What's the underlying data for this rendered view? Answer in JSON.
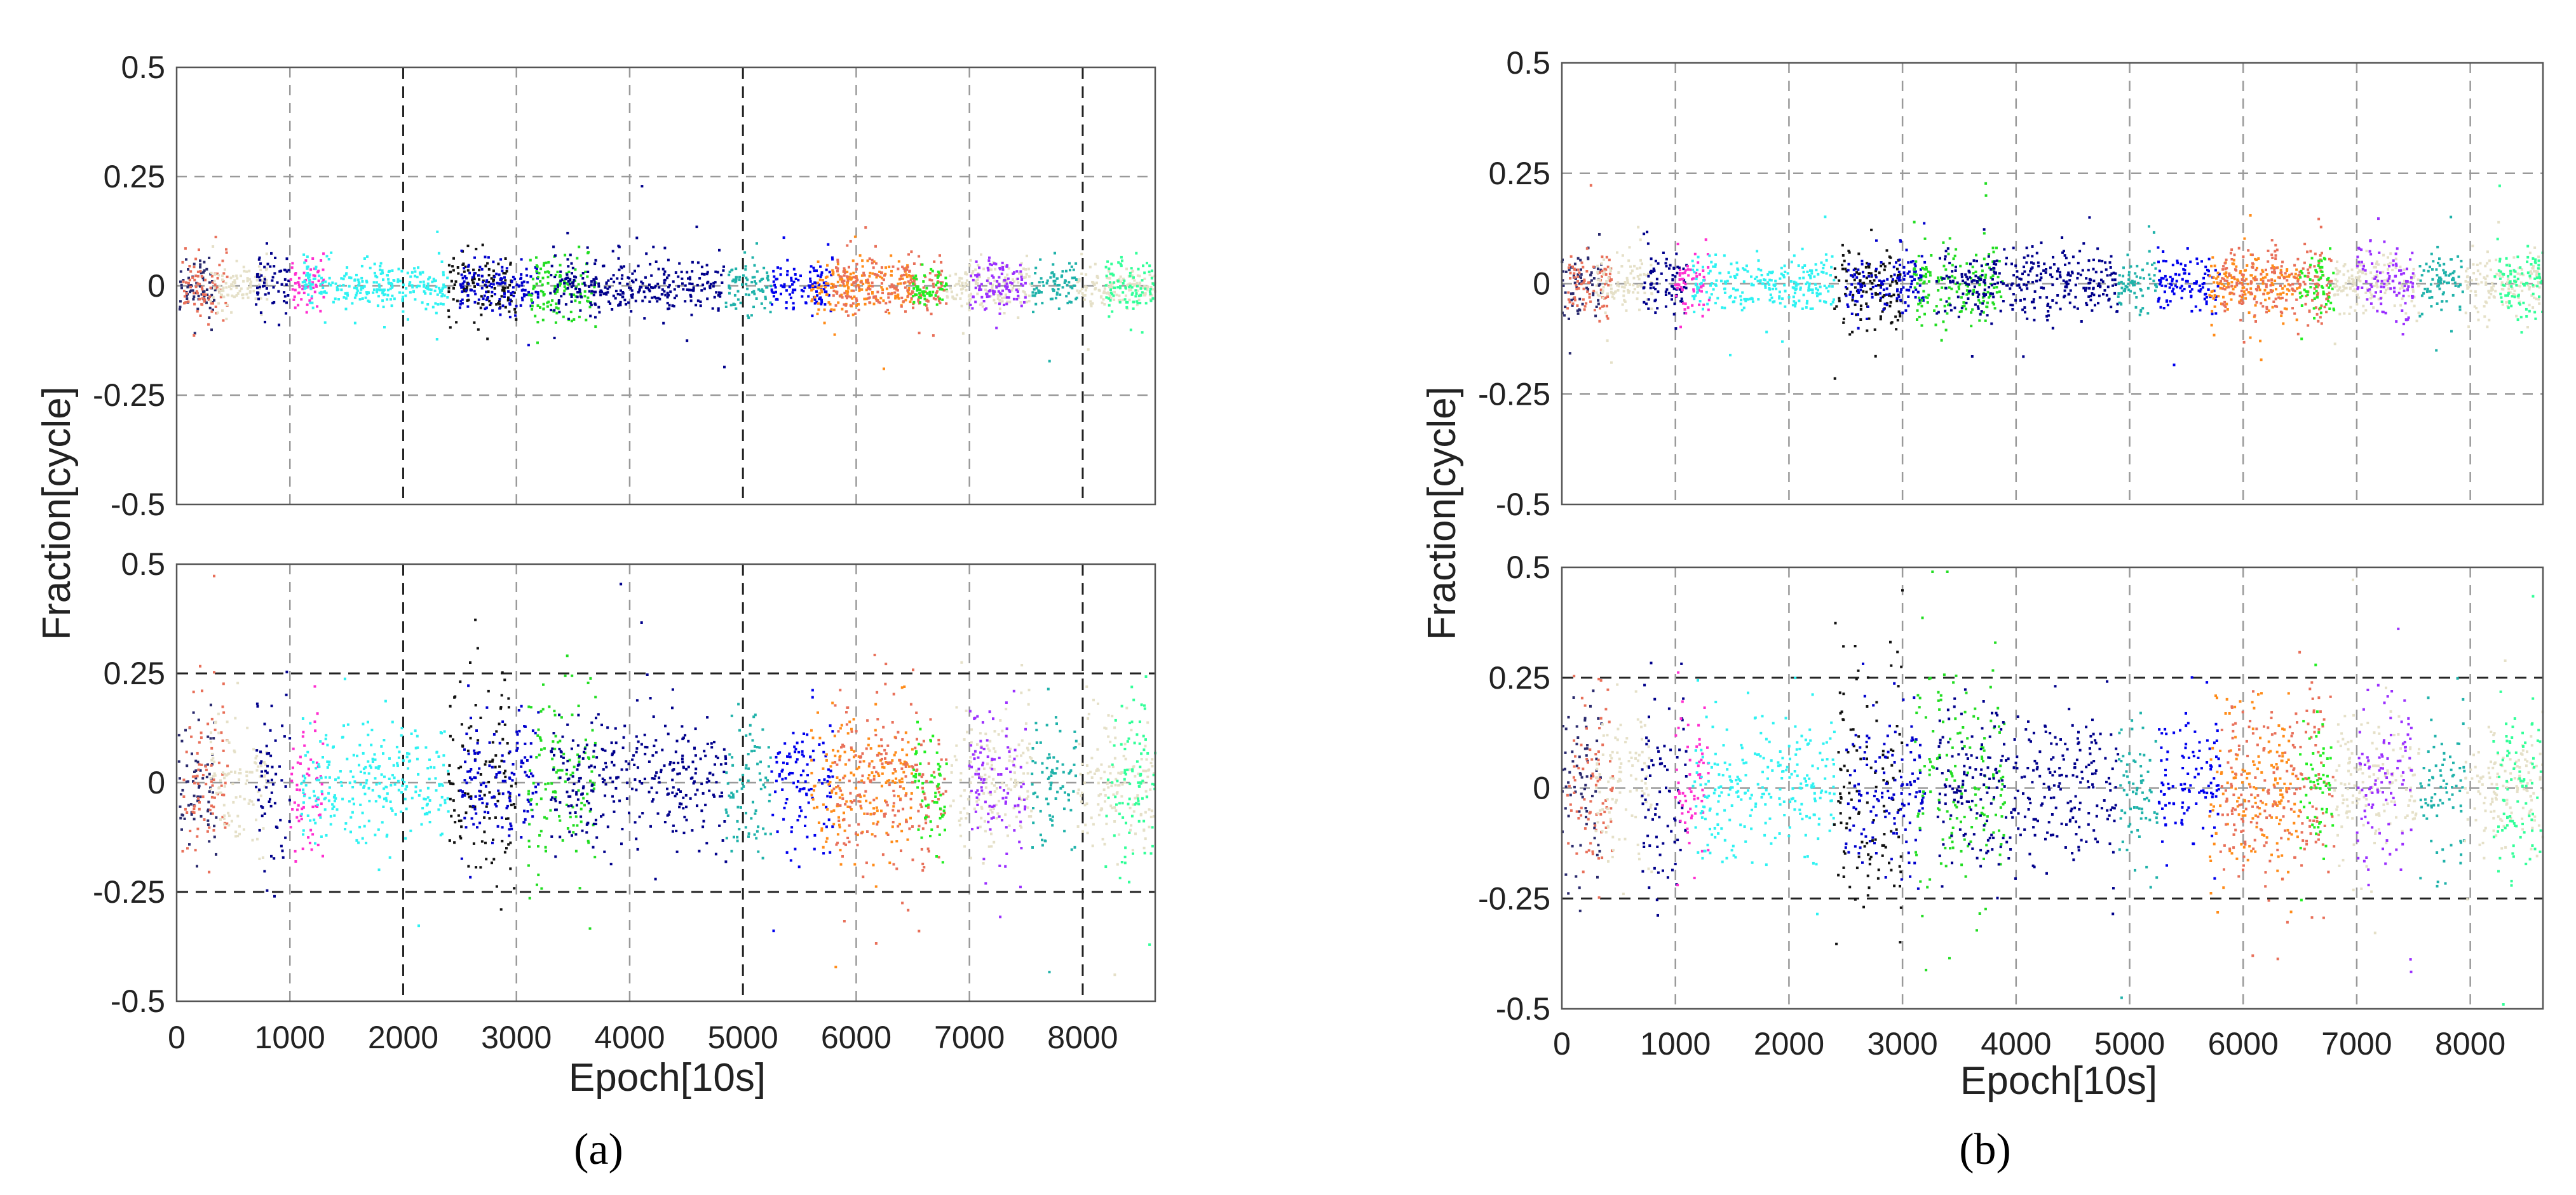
{
  "chart_data": [
    {
      "type": "scatter",
      "panel_label": "(a)",
      "xlabel": "Epoch[10s]",
      "ylabel": "Fraction[cycle]",
      "xlim": [
        0,
        8640
      ],
      "x_ticks": [
        0,
        1000,
        2000,
        3000,
        4000,
        5000,
        6000,
        7000,
        8000
      ],
      "grid": true,
      "subplots": [
        {
          "position": "top",
          "ylim": [
            -0.5,
            0.5
          ],
          "y_ticks": [
            -0.5,
            -0.25,
            0,
            0.25,
            0.5
          ],
          "y_tick_labels": [
            "-0.5",
            "-0.25",
            "0",
            "0.25",
            "0.5"
          ],
          "dark_vertical_lines": [
            2000,
            5000,
            8000
          ],
          "dark_horizontal_lines": [],
          "segments": [
            {
              "x_start": 0,
              "x_end": 350,
              "color": "#2a2a6e",
              "spread": 0.03
            },
            {
              "x_start": 50,
              "x_end": 450,
              "color": "#e8705a",
              "spread": 0.035
            },
            {
              "x_start": 300,
              "x_end": 800,
              "color": "#e5e0c8",
              "spread": 0.025
            },
            {
              "x_start": 700,
              "x_end": 1000,
              "color": "#00008b",
              "spread": 0.035
            },
            {
              "x_start": 1000,
              "x_end": 1300,
              "color": "#ff2fd0",
              "spread": 0.03
            },
            {
              "x_start": 1100,
              "x_end": 2400,
              "color": "#2ef2f2",
              "spread": 0.025
            },
            {
              "x_start": 2400,
              "x_end": 3000,
              "color": "#111111",
              "spread": 0.045
            },
            {
              "x_start": 2500,
              "x_end": 3200,
              "color": "#0000cd",
              "spread": 0.03
            },
            {
              "x_start": 3100,
              "x_end": 3700,
              "color": "#22dd22",
              "spread": 0.04
            },
            {
              "x_start": 3300,
              "x_end": 4850,
              "color": "#00008b",
              "spread": 0.03
            },
            {
              "x_start": 4850,
              "x_end": 5250,
              "color": "#20b2aa",
              "spread": 0.03
            },
            {
              "x_start": 5250,
              "x_end": 5800,
              "color": "#0000ee",
              "spread": 0.025
            },
            {
              "x_start": 5600,
              "x_end": 6500,
              "color": "#ff8c1a",
              "spread": 0.03
            },
            {
              "x_start": 5800,
              "x_end": 6800,
              "color": "#e8705a",
              "spread": 0.035
            },
            {
              "x_start": 6500,
              "x_end": 6800,
              "color": "#22ee22",
              "spread": 0.025
            },
            {
              "x_start": 6800,
              "x_end": 7550,
              "color": "#e5e0c8",
              "spread": 0.025
            },
            {
              "x_start": 7000,
              "x_end": 7500,
              "color": "#9b30ff",
              "spread": 0.035
            },
            {
              "x_start": 7550,
              "x_end": 7950,
              "color": "#20b2aa",
              "spread": 0.03
            },
            {
              "x_start": 7950,
              "x_end": 8640,
              "color": "#e5e0c8",
              "spread": 0.025
            },
            {
              "x_start": 8200,
              "x_end": 8640,
              "color": "#33ff99",
              "spread": 0.035
            }
          ]
        },
        {
          "position": "bottom",
          "ylim": [
            -0.5,
            0.5
          ],
          "y_ticks": [
            -0.5,
            -0.25,
            0,
            0.25,
            0.5
          ],
          "y_tick_labels": [
            "-0.5",
            "-0.25",
            "0",
            "0.25",
            "0.5"
          ],
          "dark_vertical_lines": [
            2000,
            5000,
            8000
          ],
          "dark_horizontal_lines": [
            -0.25,
            0.25
          ],
          "segments": [
            {
              "x_start": 0,
              "x_end": 350,
              "color": "#2a2a6e",
              "spread": 0.08
            },
            {
              "x_start": 50,
              "x_end": 450,
              "color": "#e8705a",
              "spread": 0.1
            },
            {
              "x_start": 300,
              "x_end": 800,
              "color": "#e5e0c8",
              "spread": 0.07
            },
            {
              "x_start": 700,
              "x_end": 1000,
              "color": "#00008b",
              "spread": 0.1
            },
            {
              "x_start": 1000,
              "x_end": 1300,
              "color": "#ff2fd0",
              "spread": 0.08
            },
            {
              "x_start": 1100,
              "x_end": 2400,
              "color": "#2ef2f2",
              "spread": 0.07
            },
            {
              "x_start": 2400,
              "x_end": 3000,
              "color": "#111111",
              "spread": 0.14
            },
            {
              "x_start": 2500,
              "x_end": 3200,
              "color": "#0000cd",
              "spread": 0.08
            },
            {
              "x_start": 3100,
              "x_end": 3700,
              "color": "#22dd22",
              "spread": 0.12
            },
            {
              "x_start": 3300,
              "x_end": 4850,
              "color": "#00008b",
              "spread": 0.08
            },
            {
              "x_start": 4850,
              "x_end": 5250,
              "color": "#20b2aa",
              "spread": 0.08
            },
            {
              "x_start": 5250,
              "x_end": 5800,
              "color": "#0000ee",
              "spread": 0.07
            },
            {
              "x_start": 5600,
              "x_end": 6500,
              "color": "#ff8c1a",
              "spread": 0.08
            },
            {
              "x_start": 5800,
              "x_end": 6800,
              "color": "#e8705a",
              "spread": 0.1
            },
            {
              "x_start": 6500,
              "x_end": 6800,
              "color": "#22ee22",
              "spread": 0.07
            },
            {
              "x_start": 6800,
              "x_end": 7550,
              "color": "#e5e0c8",
              "spread": 0.07
            },
            {
              "x_start": 7000,
              "x_end": 7500,
              "color": "#9b30ff",
              "spread": 0.1
            },
            {
              "x_start": 7550,
              "x_end": 7950,
              "color": "#20b2aa",
              "spread": 0.08
            },
            {
              "x_start": 7950,
              "x_end": 8640,
              "color": "#e5e0c8",
              "spread": 0.07
            },
            {
              "x_start": 8200,
              "x_end": 8640,
              "color": "#33ff99",
              "spread": 0.1
            }
          ]
        }
      ]
    },
    {
      "type": "scatter",
      "panel_label": "(b)",
      "xlabel": "Epoch[10s]",
      "ylabel": "Fraction[cycle]",
      "xlim": [
        0,
        8640
      ],
      "x_ticks": [
        0,
        1000,
        2000,
        3000,
        4000,
        5000,
        6000,
        7000,
        8000
      ],
      "grid": true,
      "subplots": [
        {
          "position": "top",
          "ylim": [
            -0.5,
            0.5
          ],
          "y_ticks": [
            -0.5,
            -0.25,
            0,
            0.25,
            0.5
          ],
          "y_tick_labels": [
            "-0.5",
            "-0.25",
            "0",
            "0.25",
            "0.5"
          ],
          "dark_vertical_lines": [],
          "dark_horizontal_lines": [],
          "segments": [
            {
              "x_start": 0,
              "x_end": 350,
              "color": "#2a2a6e",
              "spread": 0.035
            },
            {
              "x_start": 50,
              "x_end": 450,
              "color": "#e8705a",
              "spread": 0.04
            },
            {
              "x_start": 300,
              "x_end": 800,
              "color": "#e5e0c8",
              "spread": 0.03
            },
            {
              "x_start": 700,
              "x_end": 1100,
              "color": "#00008b",
              "spread": 0.04
            },
            {
              "x_start": 1000,
              "x_end": 1300,
              "color": "#ff2fd0",
              "spread": 0.035
            },
            {
              "x_start": 1150,
              "x_end": 2400,
              "color": "#2ef2f2",
              "spread": 0.03
            },
            {
              "x_start": 2400,
              "x_end": 3000,
              "color": "#111111",
              "spread": 0.05
            },
            {
              "x_start": 2500,
              "x_end": 3200,
              "color": "#0000cd",
              "spread": 0.035
            },
            {
              "x_start": 3100,
              "x_end": 3900,
              "color": "#22dd22",
              "spread": 0.045
            },
            {
              "x_start": 3300,
              "x_end": 4900,
              "color": "#00008b",
              "spread": 0.035
            },
            {
              "x_start": 4900,
              "x_end": 5250,
              "color": "#20b2aa",
              "spread": 0.035
            },
            {
              "x_start": 5250,
              "x_end": 5800,
              "color": "#0000ee",
              "spread": 0.03
            },
            {
              "x_start": 5700,
              "x_end": 6500,
              "color": "#ff8c1a",
              "spread": 0.035
            },
            {
              "x_start": 5800,
              "x_end": 6800,
              "color": "#e8705a",
              "spread": 0.045
            },
            {
              "x_start": 6500,
              "x_end": 6800,
              "color": "#22ee22",
              "spread": 0.03
            },
            {
              "x_start": 6800,
              "x_end": 7550,
              "color": "#e5e0c8",
              "spread": 0.03
            },
            {
              "x_start": 7000,
              "x_end": 7500,
              "color": "#9b30ff",
              "spread": 0.04
            },
            {
              "x_start": 7550,
              "x_end": 7950,
              "color": "#20b2aa",
              "spread": 0.035
            },
            {
              "x_start": 7950,
              "x_end": 8640,
              "color": "#e5e0c8",
              "spread": 0.03
            },
            {
              "x_start": 8200,
              "x_end": 8640,
              "color": "#33ff99",
              "spread": 0.04
            }
          ]
        },
        {
          "position": "bottom",
          "ylim": [
            -0.5,
            0.5
          ],
          "y_ticks": [
            -0.5,
            -0.25,
            0,
            0.25,
            0.5
          ],
          "y_tick_labels": [
            "-0.5",
            "-0.25",
            "0",
            "0.25",
            "0.5"
          ],
          "dark_vertical_lines": [],
          "dark_horizontal_lines": [
            -0.25,
            0.25
          ],
          "segments": [
            {
              "x_start": 0,
              "x_end": 350,
              "color": "#2a2a6e",
              "spread": 0.09
            },
            {
              "x_start": 50,
              "x_end": 450,
              "color": "#e8705a",
              "spread": 0.11
            },
            {
              "x_start": 300,
              "x_end": 800,
              "color": "#e5e0c8",
              "spread": 0.08
            },
            {
              "x_start": 700,
              "x_end": 1100,
              "color": "#00008b",
              "spread": 0.12
            },
            {
              "x_start": 1000,
              "x_end": 1300,
              "color": "#ff2fd0",
              "spread": 0.09
            },
            {
              "x_start": 1150,
              "x_end": 2400,
              "color": "#2ef2f2",
              "spread": 0.08
            },
            {
              "x_start": 2400,
              "x_end": 3000,
              "color": "#111111",
              "spread": 0.16
            },
            {
              "x_start": 2500,
              "x_end": 3200,
              "color": "#0000cd",
              "spread": 0.09
            },
            {
              "x_start": 3100,
              "x_end": 3900,
              "color": "#22dd22",
              "spread": 0.14
            },
            {
              "x_start": 3300,
              "x_end": 4900,
              "color": "#00008b",
              "spread": 0.09
            },
            {
              "x_start": 4900,
              "x_end": 5250,
              "color": "#20b2aa",
              "spread": 0.09
            },
            {
              "x_start": 5250,
              "x_end": 5800,
              "color": "#0000ee",
              "spread": 0.08
            },
            {
              "x_start": 5700,
              "x_end": 6500,
              "color": "#ff8c1a",
              "spread": 0.1
            },
            {
              "x_start": 5800,
              "x_end": 6800,
              "color": "#e8705a",
              "spread": 0.12
            },
            {
              "x_start": 6500,
              "x_end": 6800,
              "color": "#22ee22",
              "spread": 0.08
            },
            {
              "x_start": 6800,
              "x_end": 7550,
              "color": "#e5e0c8",
              "spread": 0.08
            },
            {
              "x_start": 7000,
              "x_end": 7500,
              "color": "#9b30ff",
              "spread": 0.1
            },
            {
              "x_start": 7550,
              "x_end": 7950,
              "color": "#20b2aa",
              "spread": 0.09
            },
            {
              "x_start": 7950,
              "x_end": 8640,
              "color": "#e5e0c8",
              "spread": 0.08
            },
            {
              "x_start": 8200,
              "x_end": 8640,
              "color": "#33ff99",
              "spread": 0.1
            }
          ]
        }
      ]
    }
  ]
}
